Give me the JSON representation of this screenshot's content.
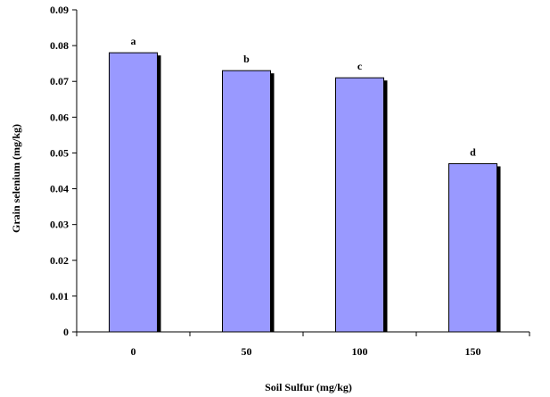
{
  "chart_data": {
    "type": "bar",
    "categories": [
      "0",
      "50",
      "100",
      "150"
    ],
    "values": [
      0.078,
      0.073,
      0.071,
      0.047
    ],
    "letters": [
      "a",
      "b",
      "c",
      "d"
    ],
    "xlabel": "Soil Sulfur (mg/kg)",
    "ylabel": "Grain selenium (mg/kg)",
    "ylim": [
      0,
      0.09
    ],
    "yticks": [
      "0",
      "0.01",
      "0.02",
      "0.03",
      "0.04",
      "0.05",
      "0.06",
      "0.07",
      "0.08",
      "0.09"
    ],
    "grid": false,
    "legend": "none",
    "colors": {
      "bar_fill": "#9999ff",
      "bar_shadow": "#000000",
      "bar_stroke": "#000000",
      "axis": "#000000"
    }
  }
}
